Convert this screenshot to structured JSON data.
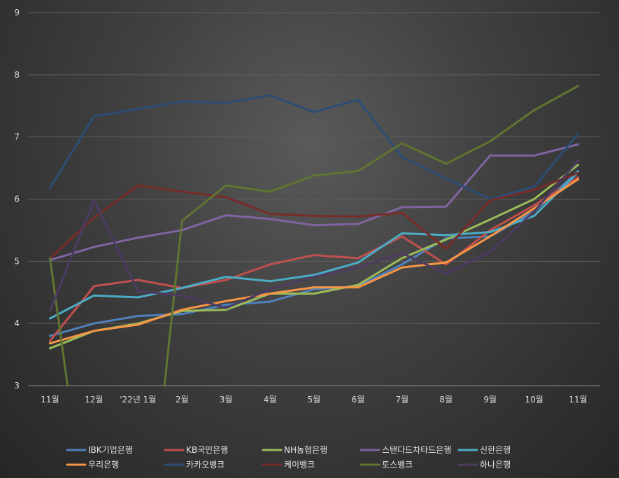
{
  "chart_data": {
    "type": "line",
    "categories": [
      "11월",
      "12월",
      "'22년 1월",
      "2월",
      "3월",
      "4월",
      "5월",
      "6월",
      "7월",
      "8월",
      "9월",
      "10월",
      "11월"
    ],
    "ylim": [
      3,
      9
    ],
    "yticks": [
      3,
      4,
      5,
      6,
      7,
      8,
      9
    ],
    "grid": true,
    "legend_position": "bottom",
    "series": [
      {
        "name": "IBK기업은행",
        "color": "#4f81bd",
        "values": [
          3.8,
          4.0,
          4.12,
          4.15,
          4.3,
          4.35,
          4.55,
          4.6,
          4.95,
          5.37,
          5.4,
          5.8,
          6.45
        ]
      },
      {
        "name": "KB국민은행",
        "color": "#c0504d",
        "values": [
          3.72,
          4.6,
          4.7,
          4.57,
          4.7,
          4.95,
          5.1,
          5.05,
          5.4,
          4.95,
          5.5,
          5.9,
          6.35
        ]
      },
      {
        "name": "NH농협은행",
        "color": "#9bbb59",
        "values": [
          3.6,
          3.88,
          4.0,
          4.2,
          4.22,
          4.48,
          4.48,
          4.62,
          5.05,
          5.35,
          5.67,
          6.0,
          6.55
        ]
      },
      {
        "name": "스탠다드차타드은행",
        "color": "#8064a2",
        "values": [
          5.02,
          5.23,
          5.38,
          5.5,
          5.74,
          5.68,
          5.58,
          5.6,
          5.87,
          5.88,
          6.7,
          6.7,
          6.88
        ]
      },
      {
        "name": "신한은행",
        "color": "#4bacc6",
        "values": [
          4.08,
          4.45,
          4.42,
          4.57,
          4.75,
          4.68,
          4.78,
          4.98,
          5.45,
          5.42,
          5.47,
          5.73,
          6.43
        ]
      },
      {
        "name": "우리은행",
        "color": "#f79646",
        "values": [
          3.68,
          3.88,
          3.98,
          4.22,
          4.36,
          4.48,
          4.58,
          4.58,
          4.9,
          4.98,
          5.4,
          5.85,
          6.32
        ]
      },
      {
        "name": "카카오뱅크",
        "color": "#2c4d75",
        "values": [
          6.18,
          7.33,
          7.45,
          7.57,
          7.55,
          7.67,
          7.4,
          7.6,
          6.68,
          6.33,
          6.0,
          6.2,
          7.05
        ]
      },
      {
        "name": "케이뱅크",
        "color": "#772c2a",
        "values": [
          5.05,
          5.7,
          6.22,
          6.12,
          6.03,
          5.76,
          5.73,
          5.72,
          5.78,
          5.2,
          5.98,
          6.15,
          6.42
        ]
      },
      {
        "name": "토스뱅크",
        "color": "#5f7530",
        "values": [
          5.05,
          null,
          null,
          5.65,
          6.22,
          6.12,
          6.38,
          6.45,
          6.9,
          6.57,
          6.93,
          7.43,
          7.82
        ]
      },
      {
        "name": "하나은행",
        "color": "#4d3b62",
        "values": [
          4.2,
          5.98,
          4.52,
          4.45,
          4.25,
          4.55,
          4.75,
          4.9,
          5.13,
          4.8,
          5.15,
          5.8,
          6.62
        ]
      }
    ],
    "gaps": [
      {
        "series": "토스뱅크",
        "from_index": 0,
        "to_index": 1,
        "end_value": 3.0,
        "end_fraction": 0.4
      },
      {
        "series": "토스뱅크",
        "from_index": 2,
        "to_index": 3,
        "start_value": 3.0,
        "start_fraction": 0.6
      }
    ]
  }
}
